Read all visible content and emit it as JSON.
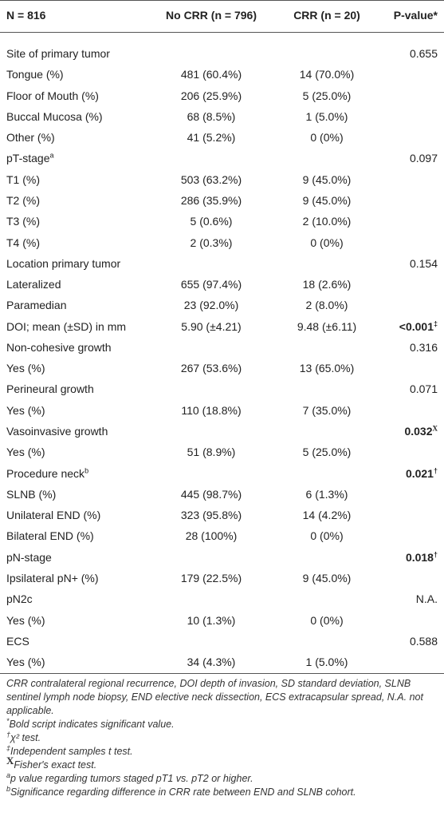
{
  "table": {
    "header": [
      "N = 816",
      "No CRR (n = 796)",
      "CRR (n = 20)",
      "P-value*"
    ],
    "rows": [
      [
        "Site of primary tumor",
        "",
        "",
        "0.655"
      ],
      [
        "Tongue (%)",
        "481 (60.4%)",
        "14 (70.0%)",
        ""
      ],
      [
        "Floor of Mouth (%)",
        "206 (25.9%)",
        "5 (25.0%)",
        ""
      ],
      [
        "Buccal Mucosa (%)",
        "68 (8.5%)",
        "1 (5.0%)",
        ""
      ],
      [
        "Other (%)",
        "41 (5.2%)",
        "0 (0%)",
        ""
      ],
      [
        {
          "text": "pT-stage",
          "sup": "a"
        },
        "",
        "",
        "0.097"
      ],
      [
        "T1 (%)",
        "503 (63.2%)",
        "9 (45.0%)",
        ""
      ],
      [
        "T2 (%)",
        "286 (35.9%)",
        "9 (45.0%)",
        ""
      ],
      [
        "T3 (%)",
        "5 (0.6%)",
        "2 (10.0%)",
        ""
      ],
      [
        "T4 (%)",
        "2 (0.3%)",
        "0 (0%)",
        ""
      ],
      [
        "Location primary tumor",
        "",
        "",
        "0.154"
      ],
      [
        "Lateralized",
        "655 (97.4%)",
        "18 (2.6%)",
        ""
      ],
      [
        "Paramedian",
        "23 (92.0%)",
        "2 (8.0%)",
        ""
      ],
      [
        "DOI; mean (±SD) in mm",
        "5.90 (±4.21)",
        "9.48 (±6.11)",
        {
          "text": "<0.001",
          "sup": "‡",
          "bold": true
        }
      ],
      [
        "Non-cohesive growth",
        "",
        "",
        "0.316"
      ],
      [
        "Yes (%)",
        "267 (53.6%)",
        "13 (65.0%)",
        ""
      ],
      [
        "Perineural growth",
        "",
        "",
        "0.071"
      ],
      [
        "Yes (%)",
        "110 (18.8%)",
        "7 (35.0%)",
        ""
      ],
      [
        "Vasoinvasive growth",
        "",
        "",
        {
          "text": "0.032",
          "sup": "X",
          "bold": true
        }
      ],
      [
        "Yes (%)",
        "51 (8.9%)",
        "5 (25.0%)",
        ""
      ],
      [
        {
          "text": "Procedure neck",
          "sup": "b"
        },
        "",
        "",
        {
          "text": "0.021",
          "sup": "†",
          "bold": true
        }
      ],
      [
        "SLNB (%)",
        "445 (98.7%)",
        "6 (1.3%)",
        ""
      ],
      [
        "Unilateral END (%)",
        "323 (95.8%)",
        "14 (4.2%)",
        ""
      ],
      [
        "Bilateral END (%)",
        "28 (100%)",
        "0 (0%)",
        ""
      ],
      [
        "pN-stage",
        "",
        "",
        {
          "text": "0.018",
          "sup": "†",
          "bold": true
        }
      ],
      [
        "Ipsilateral pN+ (%)",
        "179 (22.5%)",
        "9 (45.0%)",
        ""
      ],
      [
        "pN2c",
        "",
        "",
        "N.A."
      ],
      [
        "Yes (%)",
        "10 (1.3%)",
        "0 (0%)",
        ""
      ],
      [
        "ECS",
        "",
        "",
        "0.588"
      ],
      [
        "Yes (%)",
        "34 (4.3%)",
        "1 (5.0%)",
        ""
      ]
    ],
    "footnotes": [
      {
        "mark": null,
        "text": "CRR contralateral regional recurrence, DOI depth of invasion, SD standard deviation, SLNB sentinel lymph node biopsy, END elective neck dissection, ECS extracapsular spread, N.A. not applicable."
      },
      {
        "mark": "*",
        "text": "Bold script indicates significant value."
      },
      {
        "mark": "†",
        "text": "χ² test."
      },
      {
        "mark": "‡",
        "text": "Independent samples t test."
      },
      {
        "mark": "X",
        "text": "Fisher's exact test."
      },
      {
        "mark": "a",
        "text": "p value regarding tumors staged pT1 vs. pT2 or higher."
      },
      {
        "mark": "b",
        "text": "Significance regarding difference in CRR rate between END and SLNB cohort."
      }
    ]
  }
}
